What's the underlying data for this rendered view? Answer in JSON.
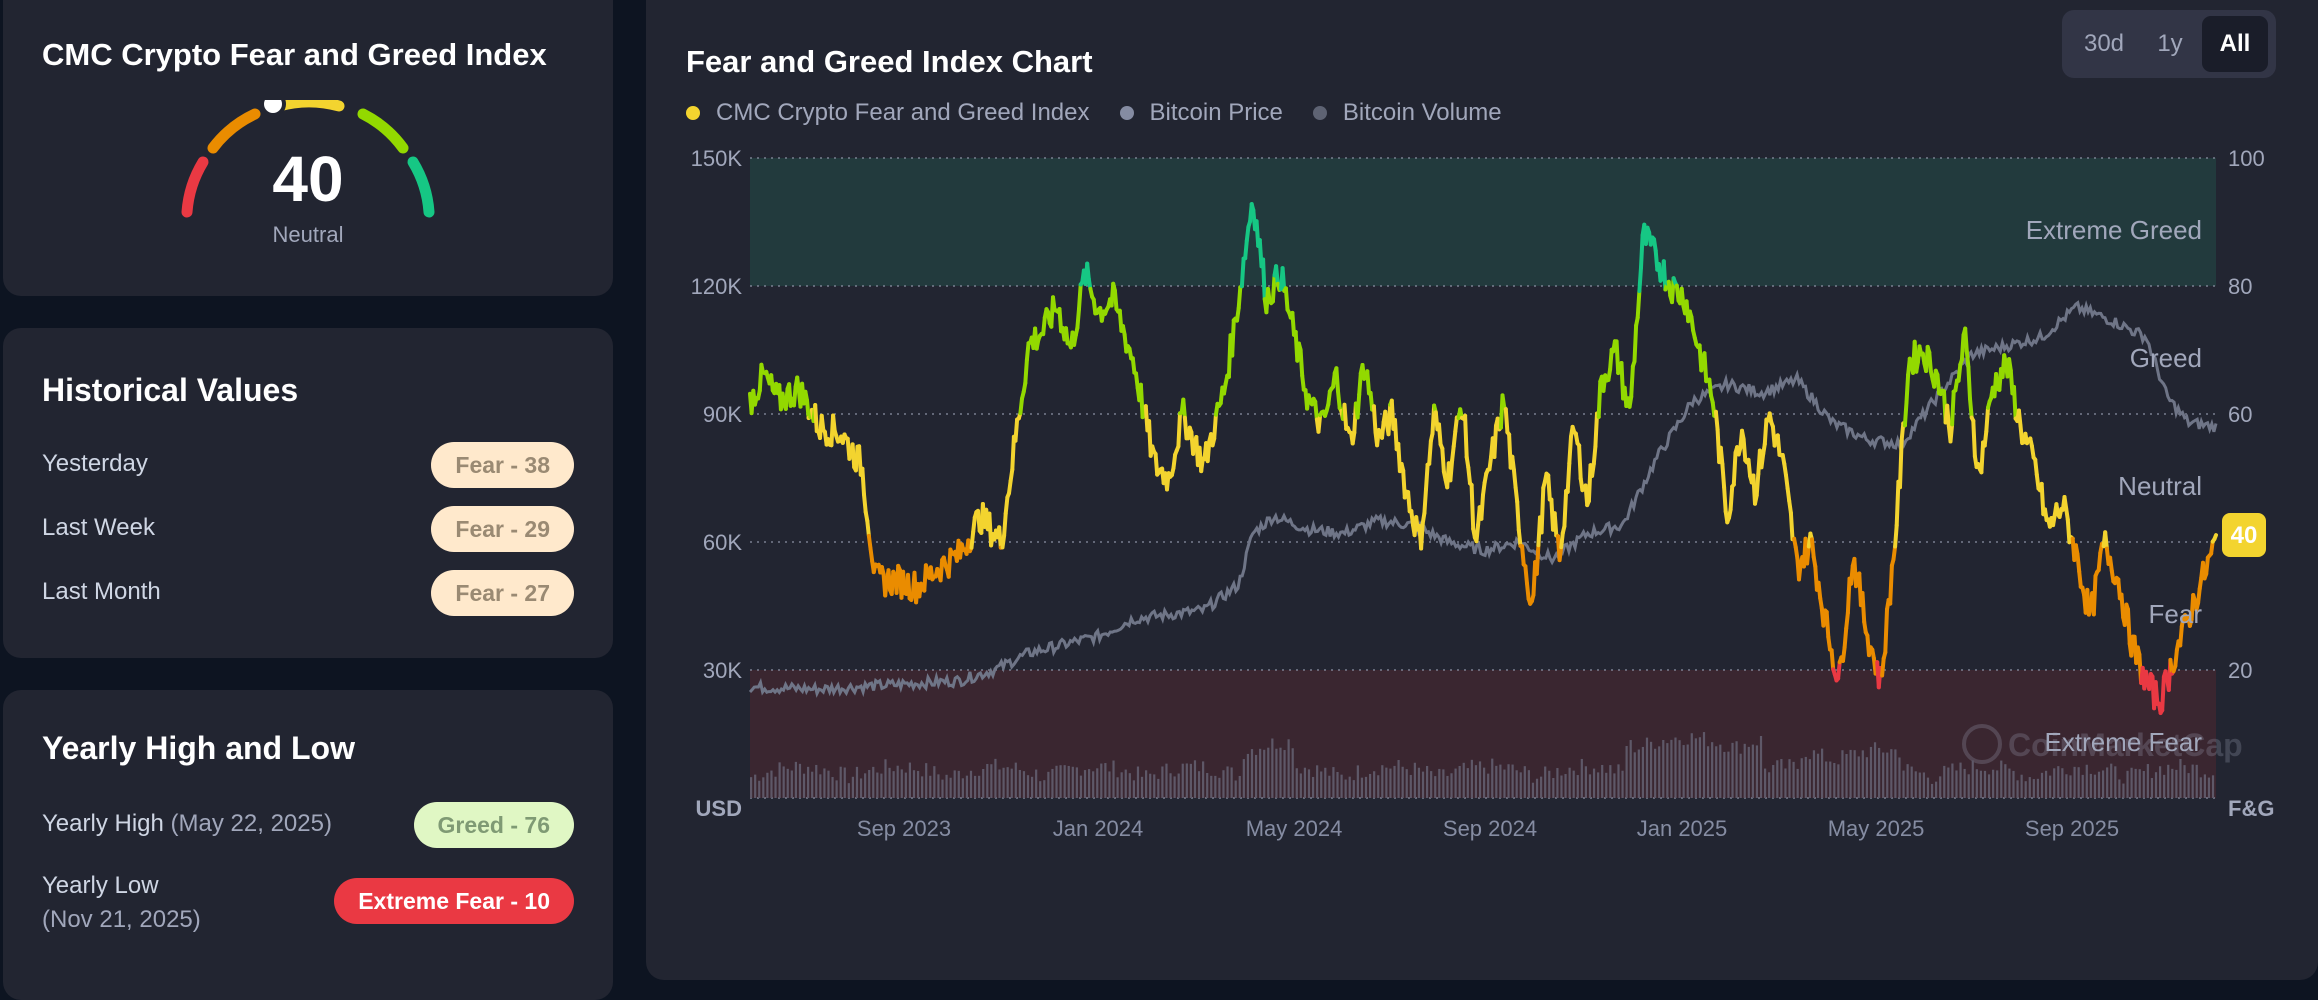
{
  "gauge_card": {
    "title": "CMC Crypto Fear and Greed Index",
    "value": "40",
    "label": "Neutral",
    "level": 40
  },
  "historical": {
    "title": "Historical Values",
    "rows": [
      {
        "label": "Yesterday",
        "value": "Fear - 38"
      },
      {
        "label": "Last Week",
        "value": "Fear - 29"
      },
      {
        "label": "Last Month",
        "value": "Fear - 27"
      }
    ]
  },
  "yearly": {
    "title": "Yearly High and Low",
    "high_label": "Yearly High",
    "high_date": "(May 22, 2025)",
    "high_value": "Greed - 76",
    "low_label": "Yearly Low",
    "low_date": "(Nov 21, 2025)",
    "low_value": "Extreme Fear - 10"
  },
  "chart_panel": {
    "title": "Fear and Greed Index Chart",
    "ranges": [
      "30d",
      "1y",
      "All"
    ],
    "active_range": "All",
    "legend": [
      {
        "label": "CMC Crypto Fear and Greed Index",
        "color": "#f3d42f"
      },
      {
        "label": "Bitcoin Price",
        "color": "#858ca2"
      },
      {
        "label": "Bitcoin Volume",
        "color": "#5e6373"
      }
    ],
    "left_unit": "USD",
    "right_unit": "F&G",
    "zones": [
      "Extreme Greed",
      "Greed",
      "Neutral",
      "Fear",
      "Extreme Fear"
    ],
    "current_value": "40",
    "watermark": "CoinMarketCap"
  },
  "chart_data": {
    "type": "line",
    "x_labels": [
      "Sep 2023",
      "Jan 2024",
      "May 2024",
      "Sep 2024",
      "Jan 2025",
      "May 2025",
      "Sep 2025"
    ],
    "y_left_ticks": [
      "30K",
      "60K",
      "90K",
      "120K",
      "150K"
    ],
    "y_left_range": [
      0,
      150000
    ],
    "y_right_ticks": [
      "20",
      "40",
      "60",
      "80",
      "100"
    ],
    "y_right_range": [
      0,
      100
    ],
    "fng_series": [
      [
        0,
        62
      ],
      [
        0.2,
        66
      ],
      [
        0.4,
        62
      ],
      [
        0.7,
        64
      ],
      [
        1,
        58
      ],
      [
        1.3,
        57
      ],
      [
        1.6,
        52
      ],
      [
        1.8,
        34
      ],
      [
        2.1,
        34
      ],
      [
        2.4,
        33
      ],
      [
        2.7,
        36
      ],
      [
        3,
        38
      ],
      [
        3.3,
        44
      ],
      [
        3.6,
        40
      ],
      [
        3.8,
        56
      ],
      [
        4,
        71
      ],
      [
        4.2,
        73
      ],
      [
        4.4,
        77
      ],
      [
        4.6,
        70
      ],
      [
        4.8,
        82
      ],
      [
        5,
        76
      ],
      [
        5.2,
        78
      ],
      [
        5.5,
        68
      ],
      [
        5.8,
        52
      ],
      [
        6,
        50
      ],
      [
        6.2,
        60
      ],
      [
        6.5,
        52
      ],
      [
        6.8,
        64
      ],
      [
        7,
        78
      ],
      [
        7.2,
        94
      ],
      [
        7.4,
        78
      ],
      [
        7.6,
        82
      ],
      [
        7.8,
        72
      ],
      [
        8,
        62
      ],
      [
        8.2,
        58
      ],
      [
        8.4,
        66
      ],
      [
        8.6,
        55
      ],
      [
        8.8,
        68
      ],
      [
        9,
        56
      ],
      [
        9.2,
        60
      ],
      [
        9.4,
        48
      ],
      [
        9.6,
        40
      ],
      [
        9.8,
        60
      ],
      [
        10,
        50
      ],
      [
        10.2,
        62
      ],
      [
        10.4,
        40
      ],
      [
        10.6,
        52
      ],
      [
        10.8,
        62
      ],
      [
        11,
        44
      ],
      [
        11.2,
        30
      ],
      [
        11.4,
        50
      ],
      [
        11.6,
        38
      ],
      [
        11.8,
        58
      ],
      [
        12,
        46
      ],
      [
        12.2,
        65
      ],
      [
        12.4,
        70
      ],
      [
        12.6,
        60
      ],
      [
        12.8,
        88
      ],
      [
        13,
        84
      ],
      [
        13.2,
        80
      ],
      [
        13.4,
        78
      ],
      [
        13.6,
        70
      ],
      [
        13.8,
        62
      ],
      [
        14,
        44
      ],
      [
        14.2,
        58
      ],
      [
        14.4,
        48
      ],
      [
        14.6,
        60
      ],
      [
        14.8,
        52
      ],
      [
        15,
        36
      ],
      [
        15.2,
        40
      ],
      [
        15.4,
        28
      ],
      [
        15.6,
        18
      ],
      [
        15.8,
        38
      ],
      [
        16,
        26
      ],
      [
        16.2,
        18
      ],
      [
        16.4,
        40
      ],
      [
        16.6,
        68
      ],
      [
        16.8,
        70
      ],
      [
        17,
        66
      ],
      [
        17.2,
        58
      ],
      [
        17.4,
        72
      ],
      [
        17.6,
        50
      ],
      [
        17.8,
        64
      ],
      [
        18,
        68
      ],
      [
        18.2,
        58
      ],
      [
        18.4,
        52
      ],
      [
        18.6,
        42
      ],
      [
        18.8,
        46
      ],
      [
        19,
        38
      ],
      [
        19.2,
        28
      ],
      [
        19.4,
        40
      ],
      [
        19.6,
        34
      ],
      [
        19.8,
        24
      ],
      [
        20,
        18
      ],
      [
        20.2,
        15
      ],
      [
        20.4,
        22
      ],
      [
        20.6,
        28
      ],
      [
        20.8,
        34
      ],
      [
        21,
        40
      ]
    ],
    "price_series": [
      [
        0,
        26000
      ],
      [
        1,
        25500
      ],
      [
        2,
        26500
      ],
      [
        3,
        27500
      ],
      [
        3.5,
        30000
      ],
      [
        4,
        34000
      ],
      [
        4.5,
        36000
      ],
      [
        5,
        38000
      ],
      [
        5.5,
        42000
      ],
      [
        6,
        43000
      ],
      [
        6.5,
        44000
      ],
      [
        7,
        50000
      ],
      [
        7.2,
        62000
      ],
      [
        7.5,
        66000
      ],
      [
        8,
        63000
      ],
      [
        8.5,
        62000
      ],
      [
        9,
        65000
      ],
      [
        9.5,
        64000
      ],
      [
        10,
        60000
      ],
      [
        10.5,
        58000
      ],
      [
        11,
        60000
      ],
      [
        11.5,
        56000
      ],
      [
        12,
        62000
      ],
      [
        12.5,
        64000
      ],
      [
        13,
        80000
      ],
      [
        13.5,
        93000
      ],
      [
        14,
        97000
      ],
      [
        14.5,
        95000
      ],
      [
        15,
        98000
      ],
      [
        15.5,
        88000
      ],
      [
        16,
        84000
      ],
      [
        16.5,
        83000
      ],
      [
        17,
        94000
      ],
      [
        17.5,
        104000
      ],
      [
        18,
        106000
      ],
      [
        18.5,
        108000
      ],
      [
        19,
        115000
      ],
      [
        19.5,
        112000
      ],
      [
        20,
        108000
      ],
      [
        20.3,
        94000
      ],
      [
        20.6,
        88000
      ],
      [
        21,
        87000
      ]
    ],
    "volume_note": "relative daily volume bars"
  }
}
